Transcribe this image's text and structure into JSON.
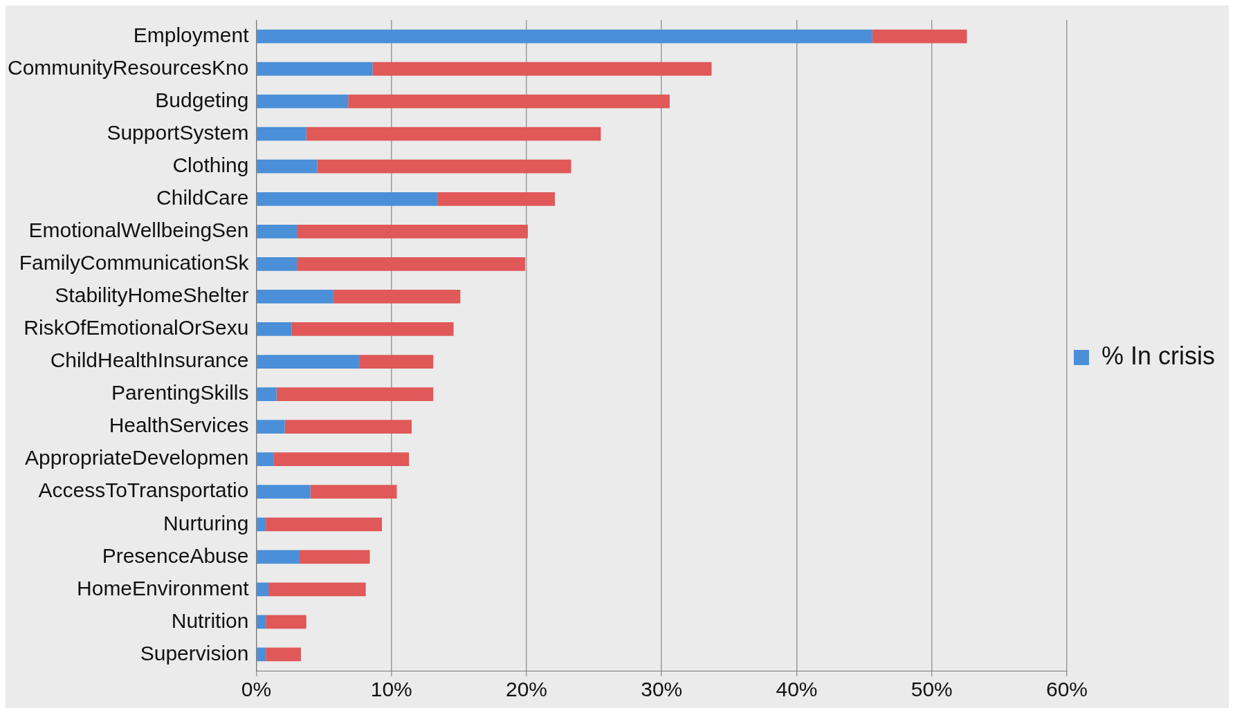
{
  "chart_data": {
    "type": "bar",
    "orientation": "horizontal",
    "stacked": true,
    "categories": [
      "Employment",
      "CommunityResourcesKno",
      "Budgeting",
      "SupportSystem",
      "Clothing",
      "ChildCare",
      "EmotionalWellbeingSen",
      "FamilyCommunicationSk",
      "StabilityHomeShelter",
      "RiskOfEmotionalOrSexu",
      "ChildHealthInsurance",
      "ParentingSkills",
      "HealthServices",
      "AppropriateDevelopmen",
      "AccessToTransportatio",
      "Nurturing",
      "PresenceAbuse",
      "HomeEnvironment",
      "Nutrition",
      "Supervision"
    ],
    "series": [
      {
        "name": "% In crisis",
        "color": "#4a8fd8",
        "values": [
          45.6,
          8.6,
          6.8,
          3.7,
          4.5,
          13.4,
          3.0,
          3.0,
          5.7,
          2.6,
          7.6,
          1.5,
          2.1,
          1.3,
          4.0,
          0.7,
          3.2,
          0.9,
          0.7,
          0.7
        ]
      },
      {
        "color": "#e05858",
        "values": [
          7.0,
          25.1,
          23.8,
          21.8,
          18.8,
          8.7,
          17.1,
          16.9,
          9.4,
          12.0,
          5.5,
          11.6,
          9.4,
          10.0,
          6.4,
          8.6,
          5.2,
          7.2,
          3.0,
          2.6
        ]
      }
    ],
    "xlim": [
      0,
      60
    ],
    "xticks": [
      {
        "value": 0,
        "label": "0%"
      },
      {
        "value": 10,
        "label": "10%"
      },
      {
        "value": 20,
        "label": "20%"
      },
      {
        "value": 30,
        "label": "30%"
      },
      {
        "value": 40,
        "label": "40%"
      },
      {
        "value": 50,
        "label": "50%"
      },
      {
        "value": 60,
        "label": "60%"
      }
    ],
    "grid": "x",
    "legend": "right"
  }
}
